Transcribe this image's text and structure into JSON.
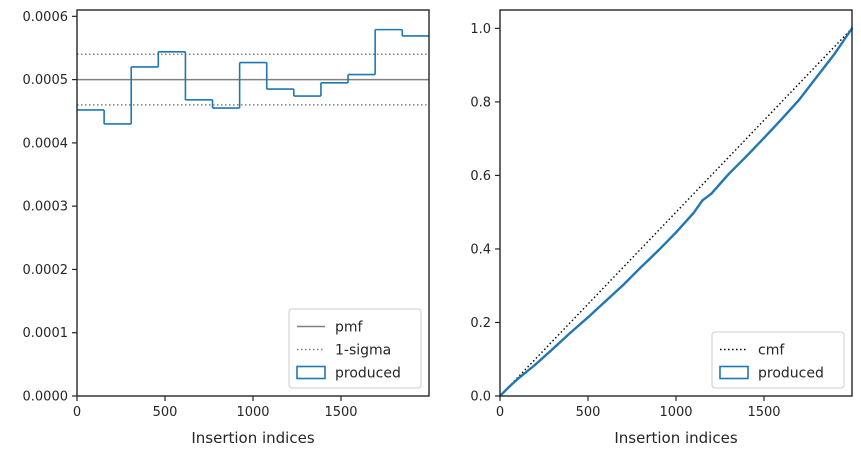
{
  "chart_data": [
    {
      "type": "line",
      "xlabel": "Insertion indices",
      "ylabel": "",
      "xlim": [
        0,
        2000
      ],
      "ylim": [
        0,
        0.00061
      ],
      "x_ticks": [
        0,
        500,
        1000,
        1500
      ],
      "x_tick_labels": [
        "0",
        "500",
        "1000",
        "1500"
      ],
      "y_ticks": [
        0,
        0.0001,
        0.0002,
        0.0003,
        0.0004,
        0.0005,
        0.0006
      ],
      "y_tick_labels": [
        "0.0000",
        "0.0001",
        "0.0002",
        "0.0003",
        "0.0004",
        "0.0005",
        "0.0006"
      ],
      "pmf": 0.0005,
      "sigma_band": [
        0.00046,
        0.00054
      ],
      "histogram": {
        "edges": [
          0,
          154,
          308,
          462,
          616,
          770,
          924,
          1078,
          1232,
          1386,
          1540,
          1694,
          1848,
          2000
        ],
        "values": [
          0.000452,
          0.00043,
          0.00052,
          0.000544,
          0.000468,
          0.000455,
          0.000527,
          0.000485,
          0.000474,
          0.000495,
          0.000508,
          0.000579,
          0.000569
        ]
      },
      "legend": {
        "position": "lower right",
        "entries": [
          {
            "label": "pmf",
            "style": "solid",
            "color": "#808080"
          },
          {
            "label": "1-sigma",
            "style": "dotted",
            "color": "#808080"
          },
          {
            "label": "produced",
            "style": "patch",
            "color": "#1f77b4"
          }
        ]
      },
      "grid": false
    },
    {
      "type": "line",
      "xlabel": "Insertion indices",
      "ylabel": "",
      "xlim": [
        0,
        2000
      ],
      "ylim": [
        0,
        1.05
      ],
      "x_ticks": [
        0,
        500,
        1000,
        1500
      ],
      "x_tick_labels": [
        "0",
        "500",
        "1000",
        "1500"
      ],
      "y_ticks": [
        0,
        0.2,
        0.4,
        0.6,
        0.8,
        1.0
      ],
      "y_tick_labels": [
        "0.0",
        "0.2",
        "0.4",
        "0.6",
        "0.8",
        "1.0"
      ],
      "series": [
        {
          "name": "cmf",
          "style": "dotted",
          "color": "#000000",
          "x": [
            0,
            2000
          ],
          "y": [
            0,
            1.0
          ]
        },
        {
          "name": "produced",
          "style": "step",
          "color": "#1f77b4",
          "x": [
            0,
            50,
            100,
            200,
            300,
            400,
            500,
            600,
            700,
            800,
            900,
            1000,
            1100,
            1150,
            1200,
            1300,
            1400,
            1500,
            1600,
            1700,
            1800,
            1900,
            2000
          ],
          "y": [
            0,
            0.024,
            0.046,
            0.085,
            0.128,
            0.172,
            0.214,
            0.258,
            0.302,
            0.35,
            0.396,
            0.445,
            0.498,
            0.532,
            0.55,
            0.604,
            0.652,
            0.702,
            0.753,
            0.806,
            0.868,
            0.93,
            1.0
          ]
        }
      ],
      "legend": {
        "position": "lower right",
        "entries": [
          {
            "label": "cmf",
            "style": "dotted",
            "color": "#000000"
          },
          {
            "label": "produced",
            "style": "patch",
            "color": "#1f77b4"
          }
        ]
      },
      "grid": false
    }
  ]
}
